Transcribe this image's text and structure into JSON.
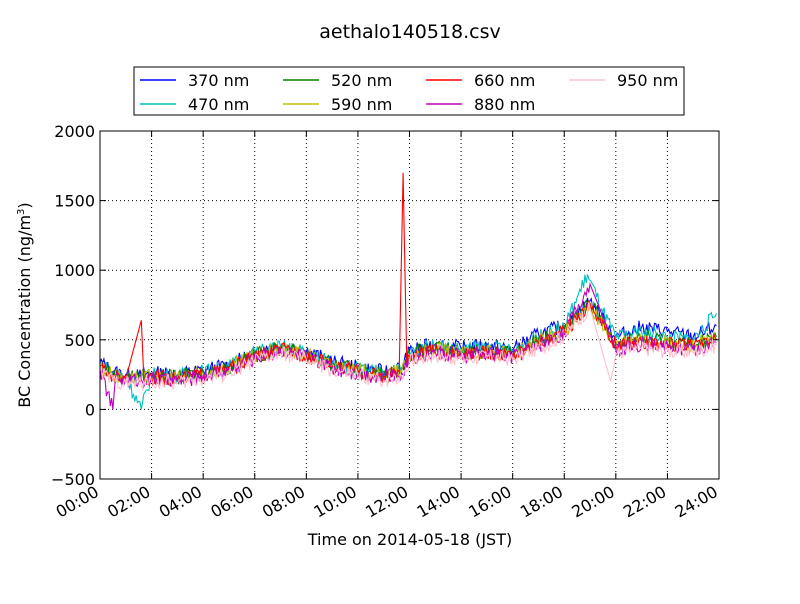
{
  "chart_data": {
    "type": "line",
    "title": "aethalo140518.csv",
    "xlabel": "Time on 2014-05-18 (JST)",
    "ylabel": "BC Concentration (ng/m",
    "ylabel_sup": "3",
    "ylabel_close": ")",
    "xlim": [
      0,
      24
    ],
    "ylim": [
      -500,
      2000
    ],
    "x_unit": "hours",
    "x_ticks": [
      "00:00",
      "02:00",
      "04:00",
      "06:00",
      "08:00",
      "10:00",
      "12:00",
      "14:00",
      "16:00",
      "18:00",
      "20:00",
      "22:00",
      "24:00"
    ],
    "y_ticks": [
      "−500",
      "0",
      "500",
      "1000",
      "1500",
      "2000"
    ],
    "grid": true,
    "legend_position": "top",
    "legend": [
      "370 nm",
      "470 nm",
      "520 nm",
      "590 nm",
      "660 nm",
      "880 nm",
      "950 nm"
    ],
    "series": [
      {
        "name": "370 nm",
        "color": "#0000ff",
        "values": [
          [
            0,
            340
          ],
          [
            0.5,
            270
          ],
          [
            1,
            250
          ],
          [
            1.5,
            240
          ],
          [
            2,
            260
          ],
          [
            3,
            250
          ],
          [
            4,
            280
          ],
          [
            5,
            320
          ],
          [
            6,
            400
          ],
          [
            7,
            460
          ],
          [
            8,
            420
          ],
          [
            9,
            340
          ],
          [
            10,
            300
          ],
          [
            11,
            270
          ],
          [
            11.7,
            300
          ],
          [
            12,
            420
          ],
          [
            13,
            470
          ],
          [
            14,
            440
          ],
          [
            15,
            460
          ],
          [
            16,
            430
          ],
          [
            17,
            540
          ],
          [
            18,
            600
          ],
          [
            19,
            780
          ],
          [
            20,
            520
          ],
          [
            21,
            590
          ],
          [
            22,
            560
          ],
          [
            23,
            520
          ],
          [
            23.9,
            600
          ]
        ]
      },
      {
        "name": "470 nm",
        "color": "#00bfbf",
        "values": [
          [
            0,
            330
          ],
          [
            0.5,
            260
          ],
          [
            1,
            240
          ],
          [
            1.6,
            0
          ],
          [
            2,
            250
          ],
          [
            3,
            240
          ],
          [
            4,
            270
          ],
          [
            5,
            310
          ],
          [
            6,
            410
          ],
          [
            7,
            450
          ],
          [
            8,
            410
          ],
          [
            9,
            330
          ],
          [
            10,
            290
          ],
          [
            11,
            260
          ],
          [
            11.7,
            290
          ],
          [
            12,
            410
          ],
          [
            13,
            460
          ],
          [
            14,
            430
          ],
          [
            15,
            450
          ],
          [
            16,
            420
          ],
          [
            17,
            520
          ],
          [
            18,
            590
          ],
          [
            18.9,
            970
          ],
          [
            19.5,
            700
          ],
          [
            20,
            510
          ],
          [
            21,
            560
          ],
          [
            22,
            520
          ],
          [
            23,
            500
          ],
          [
            23.9,
            690
          ]
        ]
      },
      {
        "name": "520 nm",
        "color": "#008000",
        "values": [
          [
            0,
            320
          ],
          [
            0.5,
            250
          ],
          [
            1,
            230
          ],
          [
            2,
            240
          ],
          [
            3,
            230
          ],
          [
            4,
            260
          ],
          [
            5,
            300
          ],
          [
            6,
            390
          ],
          [
            7,
            440
          ],
          [
            8,
            400
          ],
          [
            9,
            320
          ],
          [
            10,
            280
          ],
          [
            11,
            250
          ],
          [
            11.7,
            280
          ],
          [
            12,
            400
          ],
          [
            13,
            440
          ],
          [
            14,
            410
          ],
          [
            15,
            430
          ],
          [
            16,
            400
          ],
          [
            17,
            500
          ],
          [
            18,
            570
          ],
          [
            19,
            760
          ],
          [
            20,
            480
          ],
          [
            21,
            520
          ],
          [
            22,
            490
          ],
          [
            23,
            470
          ],
          [
            23.9,
            520
          ]
        ]
      },
      {
        "name": "590 nm",
        "color": "#bfbf00",
        "values": [
          [
            0,
            310
          ],
          [
            0.5,
            245
          ],
          [
            1,
            225
          ],
          [
            2,
            235
          ],
          [
            3,
            225
          ],
          [
            4,
            255
          ],
          [
            5,
            295
          ],
          [
            6,
            385
          ],
          [
            7,
            430
          ],
          [
            8,
            395
          ],
          [
            9,
            315
          ],
          [
            10,
            275
          ],
          [
            11,
            245
          ],
          [
            11.7,
            275
          ],
          [
            12,
            390
          ],
          [
            13,
            430
          ],
          [
            14,
            400
          ],
          [
            15,
            420
          ],
          [
            16,
            395
          ],
          [
            17,
            490
          ],
          [
            18,
            560
          ],
          [
            19,
            740
          ],
          [
            20,
            470
          ],
          [
            21,
            500
          ],
          [
            22,
            480
          ],
          [
            23,
            460
          ],
          [
            23.9,
            510
          ]
        ]
      },
      {
        "name": "660 nm",
        "color": "#ff0000",
        "values": [
          [
            0,
            300
          ],
          [
            0.5,
            240
          ],
          [
            1,
            220
          ],
          [
            1.6,
            640
          ],
          [
            1.7,
            220
          ],
          [
            2,
            230
          ],
          [
            3,
            220
          ],
          [
            4,
            250
          ],
          [
            5,
            290
          ],
          [
            6,
            380
          ],
          [
            7,
            430
          ],
          [
            8,
            390
          ],
          [
            9,
            310
          ],
          [
            10,
            270
          ],
          [
            11,
            240
          ],
          [
            11.6,
            270
          ],
          [
            11.75,
            1700
          ],
          [
            11.9,
            300
          ],
          [
            12,
            380
          ],
          [
            13,
            420
          ],
          [
            14,
            390
          ],
          [
            15,
            410
          ],
          [
            16,
            390
          ],
          [
            17,
            480
          ],
          [
            18,
            560
          ],
          [
            19,
            760
          ],
          [
            20,
            460
          ],
          [
            21,
            490
          ],
          [
            22,
            470
          ],
          [
            23,
            450
          ],
          [
            23.9,
            500
          ]
        ]
      },
      {
        "name": "880 nm",
        "color": "#bf00bf",
        "values": [
          [
            0,
            290
          ],
          [
            0.5,
            0
          ],
          [
            0.6,
            230
          ],
          [
            1,
            210
          ],
          [
            2,
            220
          ],
          [
            3,
            200
          ],
          [
            4,
            240
          ],
          [
            5,
            280
          ],
          [
            6,
            370
          ],
          [
            7,
            420
          ],
          [
            8,
            380
          ],
          [
            9,
            300
          ],
          [
            10,
            260
          ],
          [
            11,
            230
          ],
          [
            11.7,
            260
          ],
          [
            12,
            370
          ],
          [
            13,
            410
          ],
          [
            14,
            380
          ],
          [
            15,
            400
          ],
          [
            16,
            380
          ],
          [
            17,
            460
          ],
          [
            18,
            550
          ],
          [
            19,
            900
          ],
          [
            20,
            430
          ],
          [
            21,
            470
          ],
          [
            22,
            450
          ],
          [
            23,
            430
          ],
          [
            23.9,
            480
          ]
        ]
      },
      {
        "name": "950 nm",
        "color": "#ffc0cb",
        "values": [
          [
            0,
            270
          ],
          [
            0.5,
            210
          ],
          [
            1,
            190
          ],
          [
            2,
            200
          ],
          [
            3,
            190
          ],
          [
            4,
            220
          ],
          [
            5,
            260
          ],
          [
            6,
            350
          ],
          [
            7,
            400
          ],
          [
            8,
            360
          ],
          [
            9,
            280
          ],
          [
            10,
            240
          ],
          [
            11,
            210
          ],
          [
            11.7,
            240
          ],
          [
            12,
            350
          ],
          [
            13,
            390
          ],
          [
            14,
            360
          ],
          [
            15,
            380
          ],
          [
            16,
            360
          ],
          [
            17,
            440
          ],
          [
            18,
            530
          ],
          [
            19,
            730
          ],
          [
            19.8,
            200
          ],
          [
            20,
            400
          ],
          [
            21,
            440
          ],
          [
            22,
            420
          ],
          [
            23,
            410
          ],
          [
            23.9,
            460
          ]
        ]
      }
    ]
  }
}
